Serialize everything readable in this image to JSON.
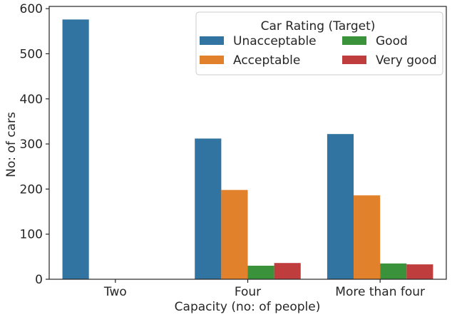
{
  "chart_data": {
    "type": "bar",
    "xlabel": "Capacity (no: of people)",
    "ylabel": "No: of cars",
    "categories": [
      "Two",
      "Four",
      "More than four"
    ],
    "ylim": [
      0,
      605
    ],
    "yticks": [
      0,
      100,
      200,
      300,
      400,
      500,
      600
    ],
    "grid": false,
    "legend": {
      "title": "Car Rating (Target)",
      "placement": "top-right",
      "columns": 2
    },
    "series": [
      {
        "name": "Unacceptable",
        "color": "#3274a1",
        "values": [
          576,
          312,
          322
        ]
      },
      {
        "name": "Acceptable",
        "color": "#e1812c",
        "values": [
          0,
          198,
          186
        ]
      },
      {
        "name": "Good",
        "color": "#3a923a",
        "values": [
          0,
          30,
          35
        ]
      },
      {
        "name": "Very good",
        "color": "#c03d3e",
        "values": [
          0,
          36,
          33
        ]
      }
    ]
  }
}
